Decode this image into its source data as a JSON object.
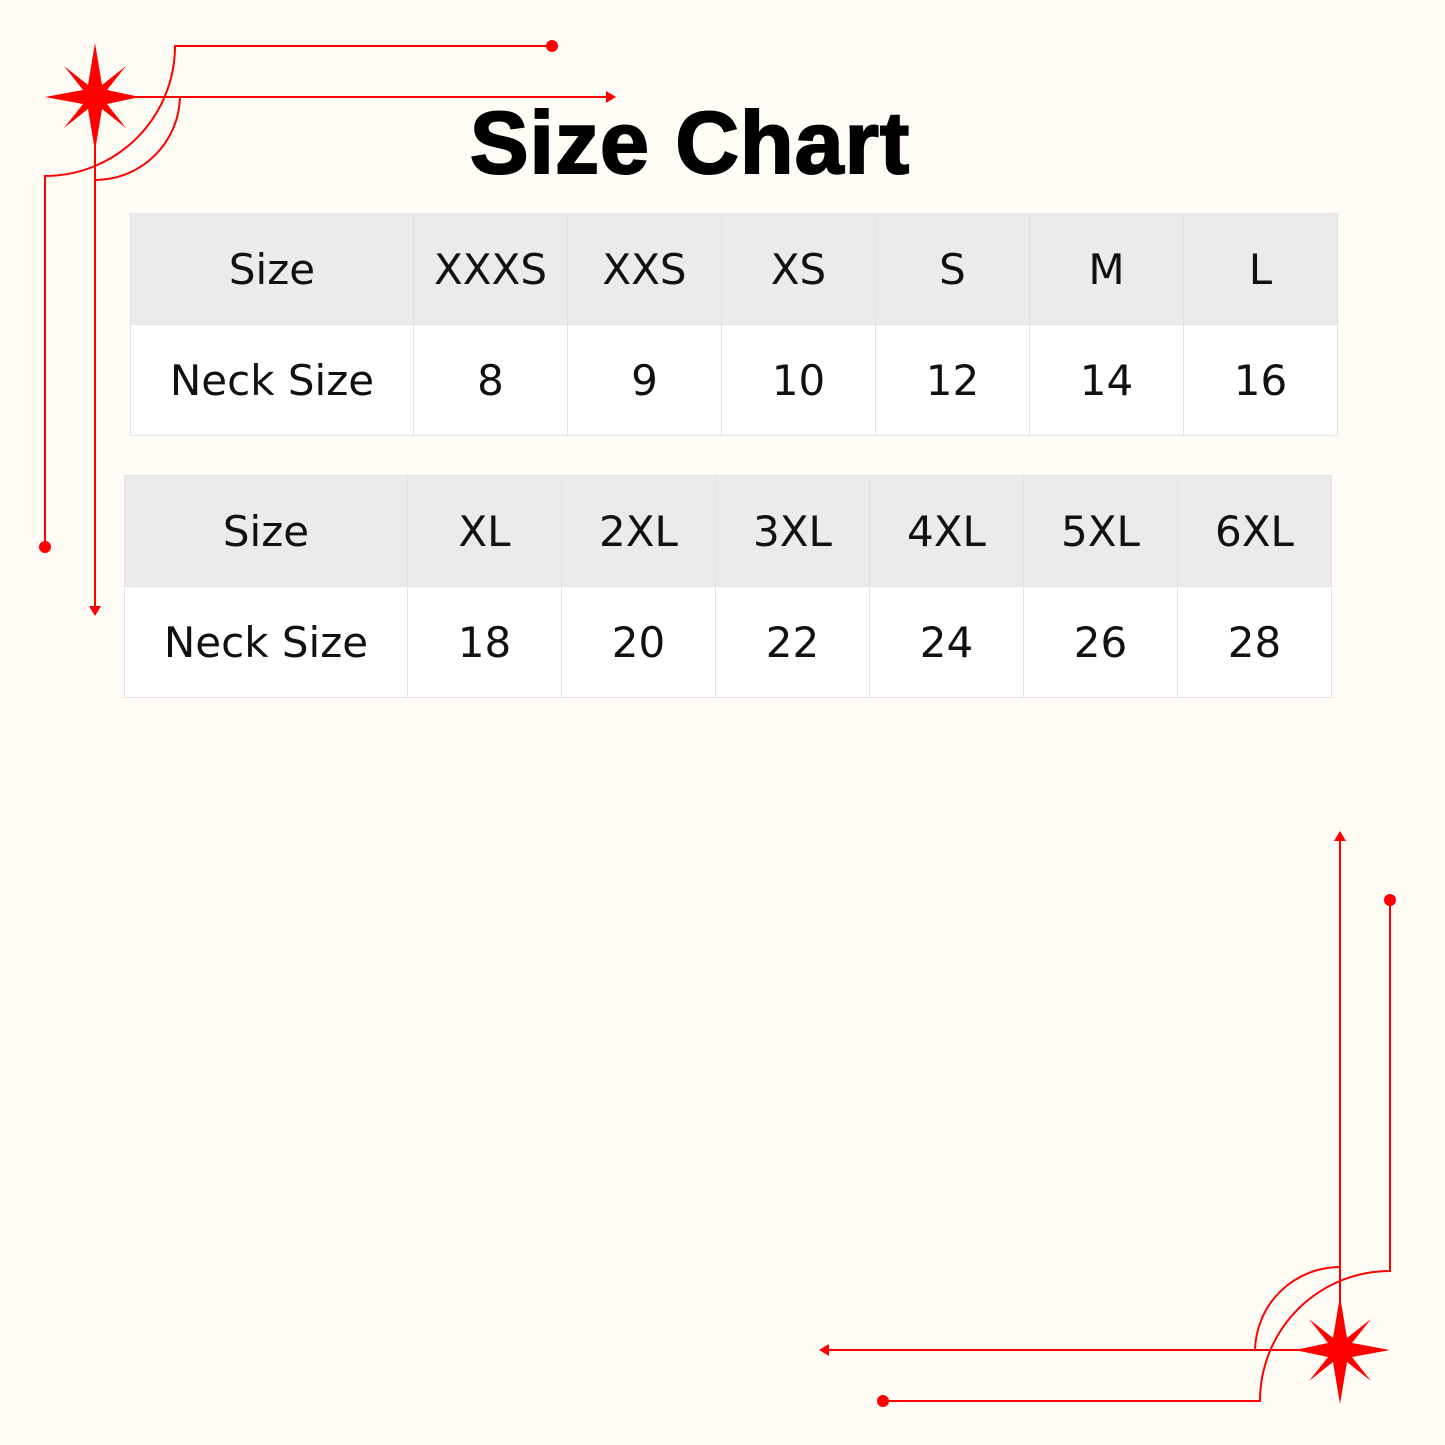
{
  "title": "Size Chart",
  "accent_color": "#ff0000",
  "tables": [
    {
      "header": [
        "Size",
        "XXXS",
        "XXS",
        "XS",
        "S",
        "M",
        "L"
      ],
      "row": [
        "Neck Size",
        "8",
        "9",
        "10",
        "12",
        "14",
        "16"
      ]
    },
    {
      "header": [
        "Size",
        "XL",
        "2XL",
        "3XL",
        "4XL",
        "5XL",
        "6XL"
      ],
      "row": [
        "Neck Size",
        "18",
        "20",
        "22",
        "24",
        "26",
        "28"
      ]
    }
  ]
}
